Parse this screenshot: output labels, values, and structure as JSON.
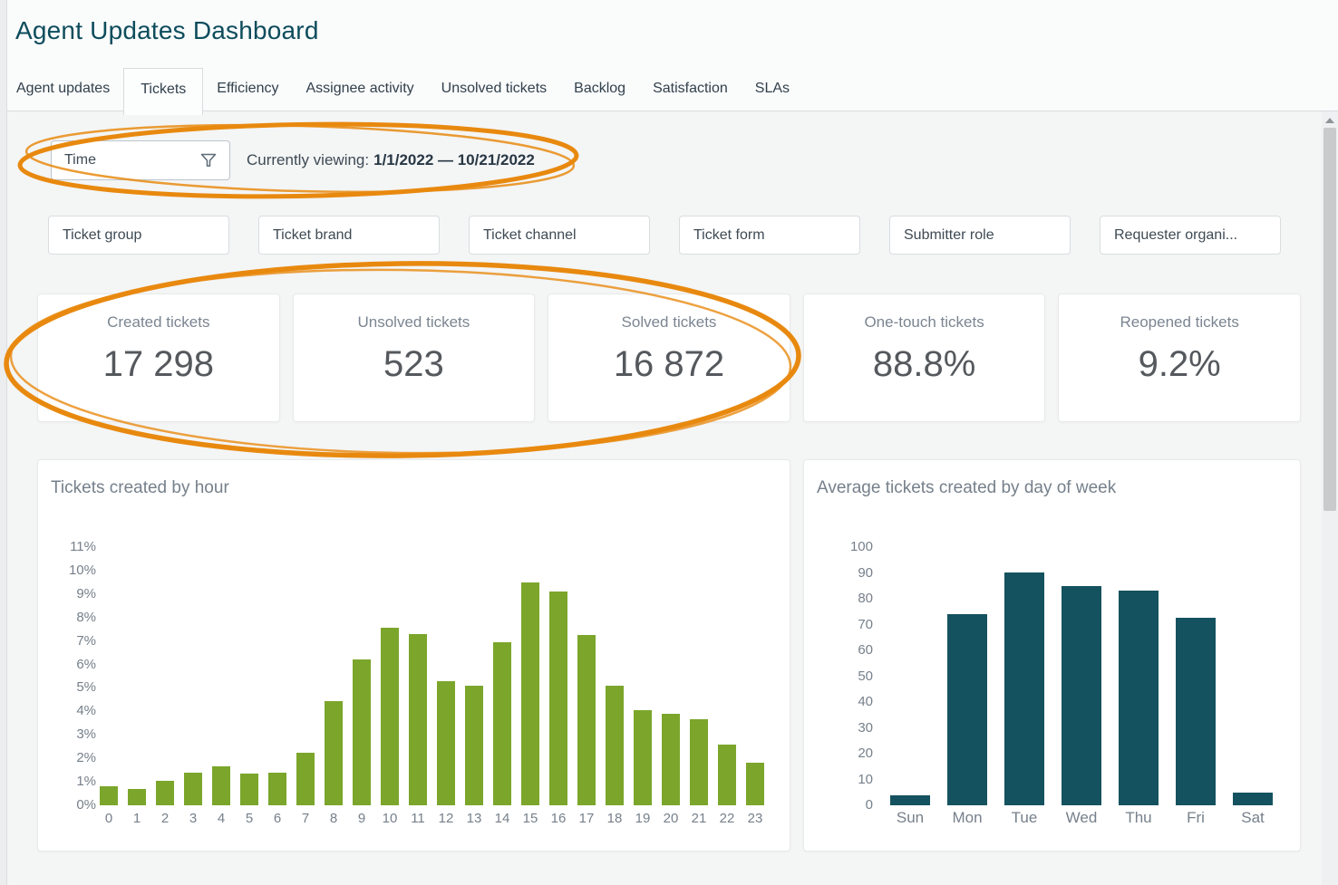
{
  "header": {
    "title": "Agent Updates Dashboard"
  },
  "tabs": {
    "items": [
      {
        "label": "Agent updates",
        "active": false
      },
      {
        "label": "Tickets",
        "active": true
      },
      {
        "label": "Efficiency",
        "active": false
      },
      {
        "label": "Assignee activity",
        "active": false
      },
      {
        "label": "Unsolved tickets",
        "active": false
      },
      {
        "label": "Backlog",
        "active": false
      },
      {
        "label": "Satisfaction",
        "active": false
      },
      {
        "label": "SLAs",
        "active": false
      }
    ]
  },
  "filters": {
    "time_label": "Time",
    "time_icon": "funnel-icon",
    "viewing_prefix": "Currently viewing:",
    "viewing_range": "1/1/2022 — 10/21/2022",
    "buttons": [
      "Ticket group",
      "Ticket brand",
      "Ticket channel",
      "Ticket form",
      "Submitter role",
      "Requester organi..."
    ]
  },
  "kpis": [
    {
      "label": "Created tickets",
      "value": "17 298"
    },
    {
      "label": "Unsolved tickets",
      "value": "523"
    },
    {
      "label": "Solved tickets",
      "value": "16 872"
    },
    {
      "label": "One-touch tickets",
      "value": "88.8%"
    },
    {
      "label": "Reopened tickets",
      "value": "9.2%"
    }
  ],
  "chart_data": [
    {
      "type": "bar",
      "title": "Tickets created by hour",
      "categories": [
        "0",
        "1",
        "2",
        "3",
        "4",
        "5",
        "6",
        "7",
        "8",
        "9",
        "10",
        "11",
        "12",
        "13",
        "14",
        "15",
        "16",
        "17",
        "18",
        "19",
        "20",
        "21",
        "22",
        "23"
      ],
      "values": [
        0.8,
        0.7,
        1.05,
        1.4,
        1.65,
        1.35,
        1.4,
        2.25,
        4.45,
        6.2,
        7.55,
        7.3,
        5.3,
        5.1,
        6.95,
        9.5,
        9.1,
        7.25,
        5.1,
        4.05,
        3.9,
        3.65,
        2.6,
        1.8
      ],
      "xlabel": "",
      "ylabel": "",
      "ylim": [
        0,
        11
      ],
      "ytick_step": 1,
      "ytick_suffix": "%",
      "bar_color": "#7BA62B",
      "grid": false,
      "legend": "none"
    },
    {
      "type": "bar",
      "title": "Average tickets created by day of week",
      "categories": [
        "Sun",
        "Mon",
        "Tue",
        "Wed",
        "Thu",
        "Fri",
        "Sat"
      ],
      "values": [
        4,
        74,
        90,
        85,
        83,
        72.5,
        5
      ],
      "xlabel": "",
      "ylabel": "",
      "ylim": [
        0,
        100
      ],
      "ytick_step": 10,
      "ytick_suffix": "",
      "bar_color": "#15525F",
      "grid": false,
      "legend": "none"
    }
  ],
  "annotations": {
    "color": "#E8890F",
    "items": [
      "ellipse around time filter and currently-viewing text",
      "ellipse around first three KPI cards"
    ]
  },
  "colors": {
    "title_teal": "#0D4C5C",
    "bar_green": "#7BA62B",
    "bar_teal": "#15525F",
    "annotation_orange": "#E8890F"
  }
}
